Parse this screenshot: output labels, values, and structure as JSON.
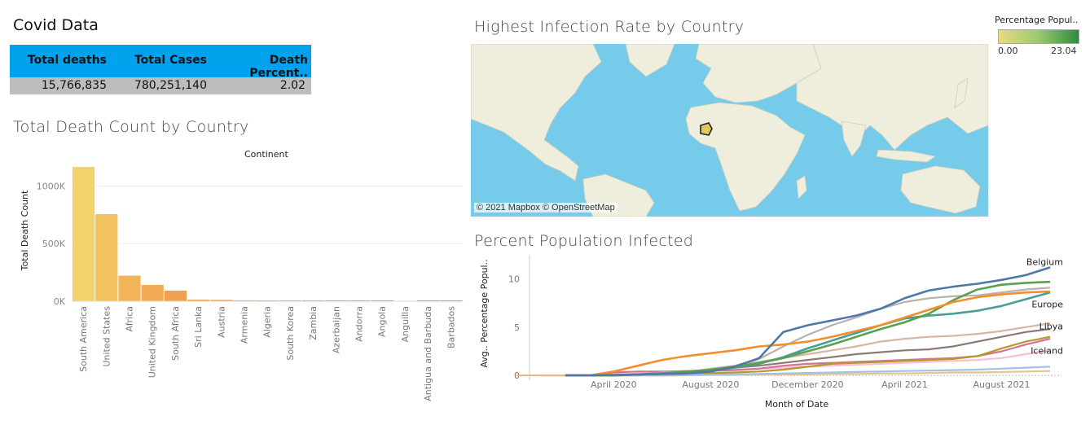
{
  "dashboard": {
    "title": "Covid Data"
  },
  "kpi": {
    "headers": [
      "Total deaths",
      "Total Cases",
      "Death Percent.."
    ],
    "values": [
      "15,766,835",
      "780,251,140",
      "2.02"
    ]
  },
  "map": {
    "title": "Highest Infection Rate by Country",
    "attribution": "© 2021 Mapbox © OpenStreetMap",
    "legend": {
      "title": "Percentage Popul..",
      "min": "0.00",
      "max": "23.04",
      "color_low": "#e8da80",
      "color_high": "#2e8b3e"
    }
  },
  "chart_data": [
    {
      "type": "bar",
      "title": "Total Death Count by Country",
      "legend_title": "Continent",
      "xlabel": "",
      "ylabel": "Total Death Count",
      "ylim": [
        0,
        1200000
      ],
      "yticks": [
        0,
        500000,
        1000000
      ],
      "ytick_labels": [
        "0K",
        "500K",
        "1000K"
      ],
      "categories": [
        "South America",
        "United States",
        "Africa",
        "United Kingdom",
        "South Africa",
        "Sri Lanka",
        "Austria",
        "Armenia",
        "Algeria",
        "South Korea",
        "Zambia",
        "Azerbaijan",
        "Andorra",
        "Angola",
        "Anguilla",
        "Antigua and Barbuda",
        "Barbados"
      ],
      "values": [
        1165000,
        755000,
        222000,
        142000,
        92000,
        13000,
        11000,
        8000,
        6000,
        2800,
        3700,
        6500,
        130,
        1800,
        0,
        90,
        40
      ],
      "colors": [
        "#f1d36a",
        "#f1c25e",
        "#f1b458",
        "#f1ac55",
        "#f0a050",
        "#ef9748",
        "#ee8f46",
        "#ec8642",
        "#ea7c3f",
        "#e8723c",
        "#e56a3b",
        "#e2603a",
        "#e05838",
        "#de5036",
        "#dc4a35",
        "#d94434",
        "#d63e33"
      ]
    },
    {
      "type": "line",
      "title": "Percent Population Infected",
      "xlabel": "Month of Date",
      "ylabel": "Avg.. Percentage Popul..",
      "x": [
        "2020-01",
        "2020-02",
        "2020-03",
        "2020-04",
        "2020-05",
        "2020-06",
        "2020-07",
        "2020-08",
        "2020-09",
        "2020-10",
        "2020-11",
        "2020-12",
        "2021-01",
        "2021-02",
        "2021-03",
        "2021-04",
        "2021-05",
        "2021-06",
        "2021-07",
        "2021-08",
        "2021-09",
        "2021-10"
      ],
      "xticks": [
        "2020-04",
        "2020-08",
        "2020-12",
        "2021-04",
        "2021-08"
      ],
      "xtick_labels": [
        "April 2020",
        "August 2020",
        "December 2020",
        "April 2021",
        "August 2021"
      ],
      "ylim": [
        -0.5,
        12.5
      ],
      "yticks": [
        0,
        5,
        10
      ],
      "annotations": [
        "Belgium",
        "Europe",
        "Libya",
        "Iceland"
      ],
      "series": [
        {
          "name": "Belgium",
          "color": "#4e79a7",
          "values": [
            null,
            0,
            0,
            0.05,
            0.1,
            0.15,
            0.2,
            0.4,
            0.9,
            1.8,
            4.5,
            5.2,
            5.7,
            6.2,
            6.9,
            8,
            8.8,
            9.2,
            9.5,
            9.9,
            10.4,
            11.2
          ]
        },
        {
          "name": "Europe",
          "color": "#f28e2b",
          "values": [
            null,
            0,
            0,
            0.4,
            1.0,
            1.6,
            2.0,
            2.3,
            2.6,
            3.0,
            3.2,
            3.5,
            4.0,
            4.6,
            5.2,
            6.0,
            6.8,
            7.6,
            8.1,
            8.4,
            8.6,
            8.7
          ]
        },
        {
          "name": "",
          "color": "#59a14f",
          "values": [
            null,
            0,
            0,
            0,
            0.1,
            0.2,
            0.4,
            0.6,
            0.9,
            1.3,
            1.8,
            2.5,
            3.2,
            4.0,
            4.8,
            5.5,
            6.4,
            7.8,
            8.9,
            9.4,
            9.6,
            9.7
          ]
        },
        {
          "name": "",
          "color": "#4a9e96",
          "values": [
            null,
            0,
            0,
            0,
            0.1,
            0.2,
            0.3,
            0.5,
            0.8,
            1.2,
            1.9,
            2.8,
            3.6,
            4.4,
            5.2,
            5.9,
            6.2,
            6.4,
            6.7,
            7.2,
            7.9,
            8.6
          ]
        },
        {
          "name": "",
          "color": "#bab0ac",
          "values": [
            null,
            0,
            0,
            0,
            0.1,
            0.3,
            0.4,
            0.6,
            1.0,
            1.7,
            3.0,
            4.2,
            5.2,
            6.0,
            6.9,
            7.6,
            8.0,
            8.2,
            8.3,
            8.6,
            8.9,
            9.1
          ]
        },
        {
          "name": "Libya",
          "color": "#d8b5a5",
          "values": [
            null,
            0,
            0,
            0,
            0,
            0.1,
            0.3,
            0.7,
            1.0,
            1.4,
            1.8,
            2.2,
            2.6,
            3.0,
            3.5,
            3.8,
            4.0,
            4.1,
            4.3,
            4.6,
            5.0,
            5.4
          ]
        },
        {
          "name": "",
          "color": "#8c7b74",
          "values": [
            null,
            0,
            0,
            0,
            0.1,
            0.2,
            0.3,
            0.5,
            0.8,
            1.0,
            1.3,
            1.6,
            1.9,
            2.2,
            2.4,
            2.6,
            2.7,
            3.0,
            3.5,
            4.0,
            4.5,
            4.8
          ]
        },
        {
          "name": "",
          "color": "#b6992d",
          "values": [
            null,
            0,
            0,
            0,
            0.05,
            0.1,
            0.2,
            0.25,
            0.3,
            0.4,
            0.6,
            0.9,
            1.2,
            1.3,
            1.4,
            1.5,
            1.6,
            1.7,
            2.0,
            2.8,
            3.5,
            4.0
          ]
        },
        {
          "name": "Iceland",
          "color": "#d37295",
          "values": [
            null,
            0,
            0,
            0.3,
            0.4,
            0.4,
            0.45,
            0.5,
            0.55,
            0.7,
            1.0,
            1.2,
            1.3,
            1.4,
            1.5,
            1.6,
            1.7,
            1.8,
            2.0,
            2.5,
            3.2,
            3.8
          ]
        },
        {
          "name": "",
          "color": "#fabfd2",
          "values": [
            null,
            0,
            0,
            0.1,
            0.2,
            0.3,
            0.4,
            0.5,
            0.6,
            0.7,
            0.8,
            0.9,
            1.0,
            1.1,
            1.2,
            1.3,
            1.4,
            1.5,
            1.6,
            1.8,
            2.2,
            2.6
          ]
        },
        {
          "name": "",
          "color": "#9dc3e6",
          "values": [
            null,
            0,
            0,
            0,
            0,
            0,
            0.05,
            0.1,
            0.1,
            0.15,
            0.2,
            0.25,
            0.3,
            0.35,
            0.4,
            0.45,
            0.5,
            0.55,
            0.6,
            0.7,
            0.8,
            0.9
          ]
        },
        {
          "name": "",
          "color": "#e6c48a",
          "values": [
            0,
            0,
            0,
            0,
            0,
            0,
            0,
            0.05,
            0.05,
            0.1,
            0.1,
            0.1,
            0.15,
            0.15,
            0.2,
            0.2,
            0.25,
            0.3,
            0.3,
            0.35,
            0.4,
            0.45
          ]
        }
      ]
    }
  ]
}
